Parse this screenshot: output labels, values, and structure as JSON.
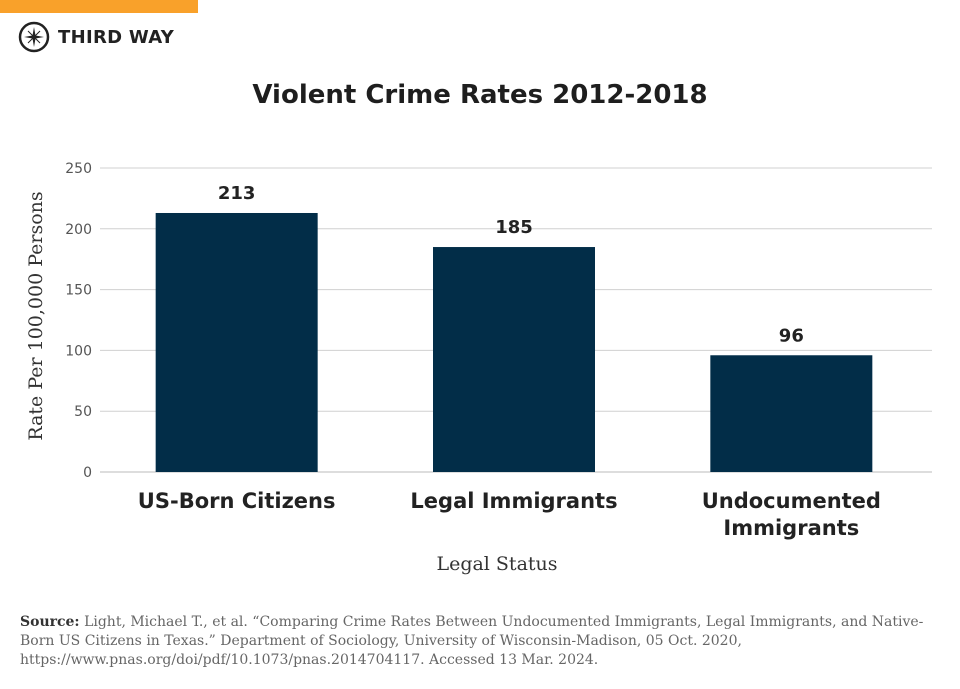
{
  "brand": {
    "name": "THIRD WAY",
    "accent": "#f9a12a"
  },
  "chart_data": {
    "type": "bar",
    "title": "Violent Crime Rates 2012-2018",
    "categories": [
      "US-Born Citizens",
      "Legal Immigrants",
      "Undocumented Immigrants"
    ],
    "values": [
      213,
      185,
      96
    ],
    "data_labels": [
      "213",
      "185",
      "96"
    ],
    "xlabel": "Legal Status",
    "ylabel": "Rate Per 100,000 Persons",
    "ylim": [
      0,
      250
    ],
    "yticks": [
      0,
      50,
      100,
      150,
      200,
      250
    ],
    "grid": true,
    "bar_color": "#022d48"
  },
  "source": {
    "label": "Source:",
    "text": "Light, Michael T., et al. “Comparing Crime Rates Between Undocumented Immigrants, Legal Immigrants, and Native-Born US Citizens in Texas.” Department of Sociology, University of Wisconsin-Madison, 05 Oct. 2020, https://www.pnas.org/doi/pdf/10.1073/pnas.2014704117. Accessed 13 Mar. 2024."
  }
}
